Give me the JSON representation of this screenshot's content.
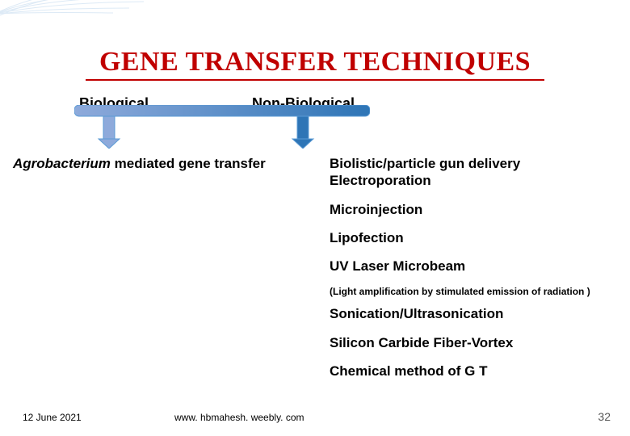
{
  "title": {
    "text": "GENE TRANSFER TECHNIQUES",
    "color": "#c00000",
    "fontsize": 34,
    "underline_color": "#c00000"
  },
  "categories": {
    "biological": {
      "label": "Biological",
      "fontsize": 18
    },
    "non_biological": {
      "label": "Non-Biological",
      "fontsize": 18
    }
  },
  "connector": {
    "stroke": "#5b9bd5",
    "fill_left": "#8eaadb",
    "fill_right": "#2e75b6",
    "stroke_width": 2
  },
  "biological_method": {
    "genus": "Agrobacterium",
    "rest": " mediated gene transfer",
    "fontsize": 17
  },
  "non_biological_methods": {
    "items": [
      {
        "text": "Biolistic/particle gun delivery",
        "kind": "item",
        "tight": true
      },
      {
        "text": "Electroporation",
        "kind": "item"
      },
      {
        "text": "Microinjection",
        "kind": "item"
      },
      {
        "text": "Lipofection",
        "kind": "item"
      },
      {
        "text": "UV Laser Microbeam",
        "kind": "item"
      },
      {
        "text": "(Light amplification by stimulated emission of radiation )",
        "kind": "small"
      },
      {
        "text": "Sonication/Ultrasonication",
        "kind": "item"
      },
      {
        "text": "Silicon Carbide Fiber-Vortex",
        "kind": "item"
      },
      {
        "text": "Chemical method of G T",
        "kind": "item"
      }
    ],
    "fontsize": 17,
    "small_fontsize": 12
  },
  "decoration": {
    "line_color": "#9cc2e5",
    "opacity": 0.35
  },
  "footer": {
    "date": "12 June 2021",
    "url": "www. hbmahesh. weebly. com",
    "page": "32",
    "fontsize": 12,
    "page_color": "#555555"
  },
  "background_color": "#ffffff"
}
